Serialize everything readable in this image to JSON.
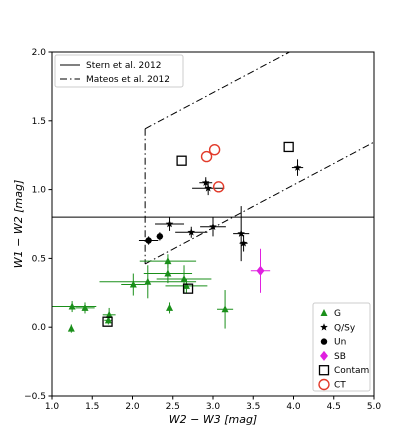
{
  "chart_data": {
    "type": "scatter",
    "xlabel": "W2 − W3 [mag]",
    "ylabel": "W1 − W2 [mag]",
    "xlim": [
      1.0,
      5.0
    ],
    "ylim": [
      -0.5,
      2.0
    ],
    "xticks": [
      "1.0",
      "1.5",
      "2.0",
      "2.5",
      "3.0",
      "3.5",
      "4.0",
      "4.5",
      "5.0"
    ],
    "yticks": [
      "−0.5",
      "0.0",
      "0.5",
      "1.0",
      "1.5",
      "2.0"
    ],
    "grid": false,
    "legend_upper": {
      "placement": "top-left",
      "entries": [
        "Stern et al. 2012",
        "Mateos et al. 2012"
      ]
    },
    "legend_lower": {
      "placement": "bottom-right",
      "entries": [
        "G",
        "Q/Sy",
        "Un",
        "SB",
        "Contam",
        "CT"
      ]
    },
    "lines": [
      {
        "name": "Stern et al. 2012",
        "style": "solid",
        "y": 0.8
      },
      {
        "name": "Mateos et al. 2012",
        "style": "dashdot",
        "segments": [
          [
            [
              2.157,
              1.442
            ],
            [
              2.157,
              0.46
            ]
          ],
          [
            [
              2.157,
              1.442
            ],
            [
              3.95,
              2.0
            ]
          ],
          [
            [
              2.157,
              0.46
            ],
            [
              5.0,
              1.345
            ]
          ]
        ]
      }
    ],
    "series": [
      {
        "name": "G",
        "marker": "triangle",
        "color": "#1a8f1a",
        "points": [
          {
            "x": 1.25,
            "y": 0.15,
            "xerr": 0.3,
            "yerr": 0.04
          },
          {
            "x": 1.24,
            "y": -0.01,
            "xerr": 0.0,
            "yerr": 0.03
          },
          {
            "x": 1.41,
            "y": 0.14,
            "xerr": 0.12,
            "yerr": 0.04
          },
          {
            "x": 1.71,
            "y": 0.09,
            "xerr": 0.08,
            "yerr": 0.05
          },
          {
            "x": 1.7,
            "y": 0.05,
            "xerr": 0.05,
            "yerr": 0.03
          },
          {
            "x": 2.01,
            "y": 0.31,
            "xerr": 0.15,
            "yerr": 0.08
          },
          {
            "x": 2.19,
            "y": 0.33,
            "xerr": 0.6,
            "yerr": 0.12
          },
          {
            "x": 2.44,
            "y": 0.48,
            "xerr": 0.35,
            "yerr": 0.05
          },
          {
            "x": 2.44,
            "y": 0.39,
            "xerr": 0.3,
            "yerr": 0.07
          },
          {
            "x": 2.46,
            "y": 0.14,
            "xerr": 0.0,
            "yerr": 0.04
          },
          {
            "x": 2.64,
            "y": 0.35,
            "xerr": 0.34,
            "yerr": 0.1
          },
          {
            "x": 2.67,
            "y": 0.3,
            "xerr": 0.26,
            "yerr": 0.05
          },
          {
            "x": 3.15,
            "y": 0.13,
            "xerr": 0.1,
            "yerr": 0.14
          }
        ]
      },
      {
        "name": "Q/Sy",
        "marker": "star",
        "color": "#000000",
        "points": [
          {
            "x": 2.46,
            "y": 0.75,
            "xerr": 0.18,
            "yerr": 0.05
          },
          {
            "x": 2.73,
            "y": 0.69,
            "xerr": 0.2,
            "yerr": 0.04
          },
          {
            "x": 2.91,
            "y": 1.05,
            "xerr": 0.08,
            "yerr": 0.04
          },
          {
            "x": 2.94,
            "y": 1.01,
            "xerr": 0.2,
            "yerr": 0.05
          },
          {
            "x": 3.0,
            "y": 0.73,
            "xerr": 0.16,
            "yerr": 0.07
          },
          {
            "x": 3.35,
            "y": 0.68,
            "xerr": 0.1,
            "yerr": 0.2
          },
          {
            "x": 3.38,
            "y": 0.61,
            "xerr": 0.05,
            "yerr": 0.06
          },
          {
            "x": 4.05,
            "y": 1.16,
            "xerr": 0.07,
            "yerr": 0.06
          }
        ]
      },
      {
        "name": "Un",
        "marker": "circle",
        "color": "#000000",
        "points": [
          {
            "x": 2.2,
            "y": 0.63,
            "xerr": 0.12,
            "yerr": 0.03
          },
          {
            "x": 2.34,
            "y": 0.66,
            "xerr": 0.04,
            "yerr": 0.03
          }
        ]
      },
      {
        "name": "SB",
        "marker": "diamond",
        "color": "#e020e0",
        "points": [
          {
            "x": 3.59,
            "y": 0.41,
            "xerr": 0.12,
            "yerr": 0.16
          }
        ]
      },
      {
        "name": "Contam",
        "marker": "square-open",
        "color": "#000000",
        "points": [
          {
            "x": 2.61,
            "y": 1.21
          },
          {
            "x": 3.94,
            "y": 1.31
          },
          {
            "x": 1.69,
            "y": 0.04
          },
          {
            "x": 2.69,
            "y": 0.28
          }
        ]
      },
      {
        "name": "CT",
        "marker": "circle-open",
        "color": "#e23a2a",
        "points": [
          {
            "x": 2.92,
            "y": 1.24
          },
          {
            "x": 3.02,
            "y": 1.29
          },
          {
            "x": 3.07,
            "y": 1.02
          }
        ]
      }
    ]
  }
}
